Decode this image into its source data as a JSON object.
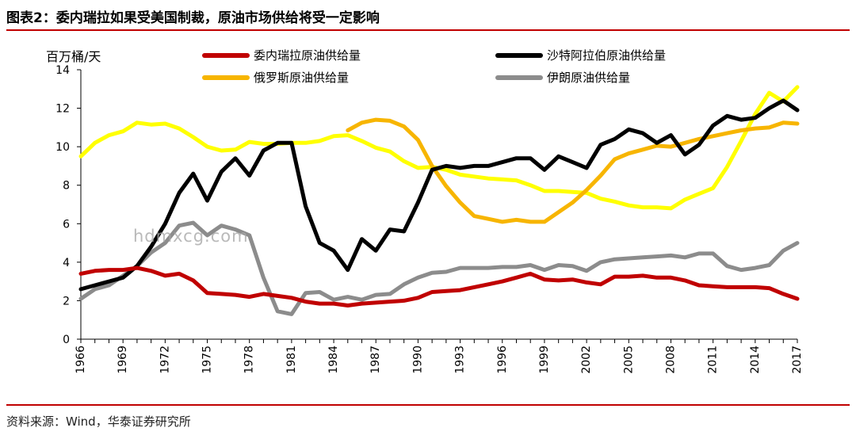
{
  "figure": {
    "title": "图表2：委内瑞拉如果受美国制裁，原油市场供给将受一定影响",
    "source": "资料来源：Wind，华泰证券研究所",
    "watermark": "hdmxcg.com"
  },
  "chart_data": {
    "type": "line",
    "ylabel": "百万桶/天",
    "xlabel": "",
    "ylim": [
      0,
      14
    ],
    "yticks": [
      0,
      2,
      4,
      6,
      8,
      10,
      12,
      14
    ],
    "xlim": [
      1966,
      2017
    ],
    "xticks": [
      1966,
      1969,
      1972,
      1975,
      1978,
      1981,
      1984,
      1987,
      1990,
      1993,
      1996,
      1999,
      2002,
      2005,
      2008,
      2011,
      2014,
      2017
    ],
    "grid": false,
    "legend_position": "top",
    "series": [
      {
        "name": "委内瑞拉原油供给量",
        "color": "#c00000",
        "start_year": 1966,
        "values": [
          3.4,
          3.55,
          3.6,
          3.6,
          3.7,
          3.55,
          3.3,
          3.4,
          3.05,
          2.4,
          2.35,
          2.3,
          2.2,
          2.35,
          2.25,
          2.15,
          1.95,
          1.85,
          1.85,
          1.75,
          1.85,
          1.9,
          1.95,
          2.0,
          2.15,
          2.45,
          2.5,
          2.55,
          2.7,
          2.85,
          3.0,
          3.2,
          3.4,
          3.1,
          3.05,
          3.1,
          2.95,
          2.85,
          3.25,
          3.25,
          3.3,
          3.2,
          3.2,
          3.05,
          2.8,
          2.75,
          2.7,
          2.7,
          2.7,
          2.65,
          2.35,
          2.1
        ]
      },
      {
        "name": "沙特阿拉伯原油供给量",
        "color": "#000000",
        "start_year": 1966,
        "values": [
          2.6,
          2.8,
          3.0,
          3.2,
          3.8,
          4.8,
          6.0,
          7.6,
          8.6,
          7.2,
          8.7,
          9.4,
          8.5,
          9.8,
          10.2,
          10.2,
          6.9,
          5.0,
          4.6,
          3.6,
          5.2,
          4.6,
          5.7,
          5.6,
          7.1,
          8.8,
          9.0,
          8.9,
          9.0,
          9.0,
          9.2,
          9.4,
          9.4,
          8.8,
          9.5,
          9.2,
          8.9,
          10.1,
          10.4,
          10.9,
          10.7,
          10.2,
          10.6,
          9.6,
          10.1,
          11.1,
          11.6,
          11.4,
          11.5,
          12.0,
          12.4,
          11.9
        ]
      },
      {
        "name": "俄罗斯原油供给量",
        "color": "#f7b500",
        "start_year": 1985,
        "values": [
          10.85,
          11.25,
          11.4,
          11.35,
          11.05,
          10.35,
          9.0,
          7.95,
          7.1,
          6.4,
          6.25,
          6.1,
          6.2,
          6.1,
          6.1,
          6.6,
          7.1,
          7.75,
          8.5,
          9.35,
          9.65,
          9.85,
          10.05,
          10.0,
          10.2,
          10.4,
          10.55,
          10.7,
          10.85,
          10.95,
          11.0,
          11.25,
          11.2
        ]
      },
      {
        "name": "伊朗原油供给量",
        "color": "#8c8c8c",
        "start_year": 1966,
        "values": [
          2.1,
          2.6,
          2.8,
          3.3,
          3.8,
          4.5,
          5.0,
          5.9,
          6.05,
          5.4,
          5.9,
          5.7,
          5.4,
          3.2,
          1.45,
          1.3,
          2.4,
          2.45,
          2.05,
          2.2,
          2.05,
          2.3,
          2.35,
          2.85,
          3.2,
          3.45,
          3.5,
          3.7,
          3.7,
          3.7,
          3.75,
          3.75,
          3.85,
          3.6,
          3.85,
          3.8,
          3.55,
          4.0,
          4.15,
          4.2,
          4.25,
          4.3,
          4.35,
          4.25,
          4.45,
          4.45,
          3.8,
          3.6,
          3.7,
          3.85,
          4.6,
          5.0
        ]
      },
      {
        "name": "",
        "color": "#ffff00",
        "start_year": 1966,
        "values": [
          9.5,
          10.2,
          10.6,
          10.8,
          11.25,
          11.15,
          11.2,
          10.95,
          10.5,
          10.0,
          9.8,
          9.85,
          10.25,
          10.15,
          10.15,
          10.2,
          10.2,
          10.3,
          10.55,
          10.6,
          10.3,
          9.95,
          9.75,
          9.25,
          8.9,
          8.95,
          8.8,
          8.55,
          8.45,
          8.35,
          8.3,
          8.25,
          8.0,
          7.7,
          7.7,
          7.65,
          7.6,
          7.3,
          7.15,
          6.95,
          6.85,
          6.85,
          6.8,
          7.25,
          7.55,
          7.85,
          8.95,
          10.3,
          11.7,
          12.8,
          12.35,
          13.1
        ]
      }
    ],
    "legend": [
      {
        "series": 0,
        "col": 0,
        "row": 0
      },
      {
        "series": 1,
        "col": 1,
        "row": 0
      },
      {
        "series": 2,
        "col": 0,
        "row": 1
      },
      {
        "series": 3,
        "col": 1,
        "row": 1
      }
    ]
  }
}
